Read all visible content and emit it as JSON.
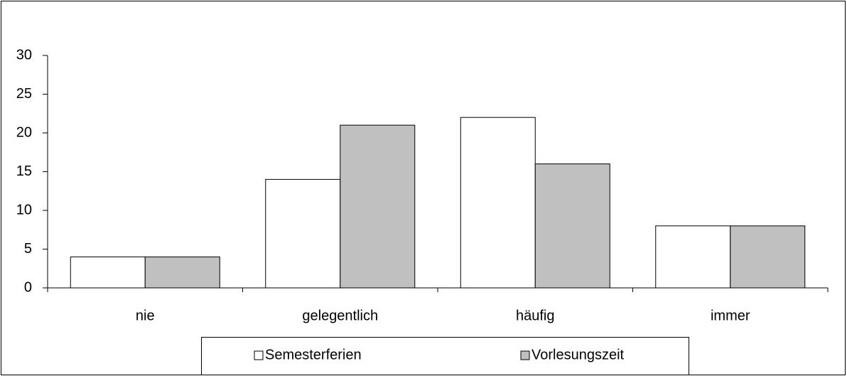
{
  "chart_data": {
    "type": "bar",
    "categories": [
      "nie",
      "gelegentlich",
      "häufig",
      "immer"
    ],
    "series": [
      {
        "name": "Semesterferien",
        "color": "#ffffff",
        "values": [
          4,
          14,
          22,
          8
        ]
      },
      {
        "name": "Vorlesungszeit",
        "color": "#c0c0c0",
        "values": [
          4,
          21,
          16,
          8
        ]
      }
    ],
    "ylim": [
      0,
      30
    ],
    "yticks": [
      0,
      5,
      10,
      15,
      20,
      25,
      30
    ],
    "grid": false,
    "legend": "bottom"
  }
}
